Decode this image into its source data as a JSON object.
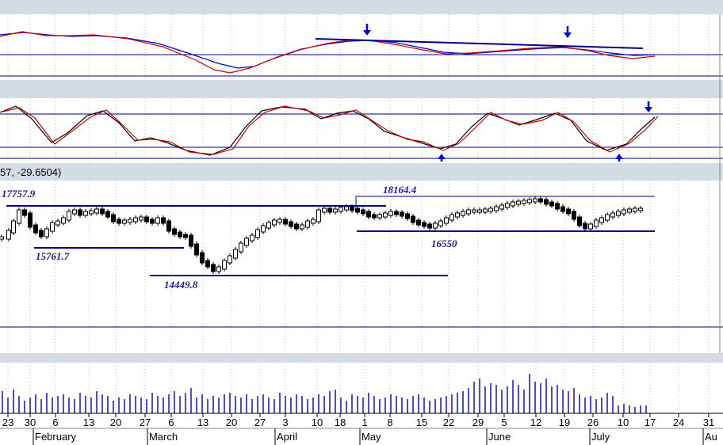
{
  "chart_data": {
    "type": "candlestick",
    "price_readout": "57, -29.6504)",
    "price_annotations": [
      {
        "label": "17757.9",
        "value": 17757.9
      },
      {
        "label": "15761.7",
        "value": 15761.7
      },
      {
        "label": "14449.8",
        "value": 14449.8
      },
      {
        "label": "18164.4",
        "value": 18164.4
      },
      {
        "label": "16550",
        "value": 16550
      }
    ],
    "day_ticks": [
      "23",
      "30",
      "6",
      "13",
      "20",
      "27",
      "6",
      "13",
      "20",
      "27",
      "3",
      "10",
      "18",
      "1",
      "8",
      "15",
      "22",
      "29",
      "5",
      "12",
      "19",
      "26",
      "10",
      "17",
      "24",
      "31"
    ],
    "month_labels": [
      "February",
      "March",
      "April",
      "May",
      "June",
      "July",
      "Au"
    ],
    "colors": {
      "fast_line": "#0000cc",
      "slow_line": "#cc0000",
      "k_line": "#000000",
      "annotation_line": "#00008b",
      "arrow": "#0000dd",
      "volume": "#0000cc",
      "grid": "#bbbbbb",
      "separator": "#d4dde6"
    }
  }
}
